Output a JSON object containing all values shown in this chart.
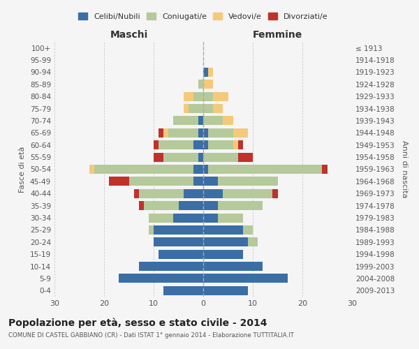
{
  "age_groups": [
    "0-4",
    "5-9",
    "10-14",
    "15-19",
    "20-24",
    "25-29",
    "30-34",
    "35-39",
    "40-44",
    "45-49",
    "50-54",
    "55-59",
    "60-64",
    "65-69",
    "70-74",
    "75-79",
    "80-84",
    "85-89",
    "90-94",
    "95-99",
    "100+"
  ],
  "birth_years": [
    "2009-2013",
    "2004-2008",
    "1999-2003",
    "1994-1998",
    "1989-1993",
    "1984-1988",
    "1979-1983",
    "1974-1978",
    "1969-1973",
    "1964-1968",
    "1959-1963",
    "1954-1958",
    "1949-1953",
    "1944-1948",
    "1939-1943",
    "1934-1938",
    "1929-1933",
    "1924-1928",
    "1919-1923",
    "1914-1918",
    "≤ 1913"
  ],
  "male": {
    "celibi": [
      8,
      17,
      13,
      9,
      10,
      10,
      6,
      5,
      4,
      2,
      2,
      1,
      2,
      1,
      1,
      0,
      0,
      0,
      0,
      0,
      0
    ],
    "coniugati": [
      0,
      0,
      0,
      0,
      0,
      1,
      5,
      7,
      9,
      13,
      20,
      7,
      7,
      6,
      5,
      3,
      2,
      1,
      0,
      0,
      0
    ],
    "vedovi": [
      0,
      0,
      0,
      0,
      0,
      0,
      0,
      0,
      0,
      0,
      1,
      0,
      0,
      1,
      0,
      1,
      2,
      0,
      0,
      0,
      0
    ],
    "divorziati": [
      0,
      0,
      0,
      0,
      0,
      0,
      0,
      1,
      1,
      4,
      0,
      2,
      1,
      1,
      0,
      0,
      0,
      0,
      0,
      0,
      0
    ]
  },
  "female": {
    "nubili": [
      9,
      17,
      12,
      8,
      9,
      8,
      3,
      3,
      4,
      3,
      1,
      0,
      1,
      1,
      0,
      0,
      0,
      0,
      1,
      0,
      0
    ],
    "coniugate": [
      0,
      0,
      0,
      0,
      2,
      2,
      5,
      9,
      10,
      12,
      23,
      7,
      5,
      5,
      4,
      2,
      2,
      0,
      0,
      0,
      0
    ],
    "vedove": [
      0,
      0,
      0,
      0,
      0,
      0,
      0,
      0,
      0,
      0,
      0,
      0,
      1,
      3,
      2,
      2,
      3,
      2,
      1,
      0,
      0
    ],
    "divorziate": [
      0,
      0,
      0,
      0,
      0,
      0,
      0,
      0,
      1,
      0,
      1,
      3,
      1,
      0,
      0,
      0,
      0,
      0,
      0,
      0,
      0
    ]
  },
  "colors": {
    "celibi": "#3a6ea5",
    "coniugati": "#b5c99a",
    "vedovi": "#f5c97a",
    "divorziati": "#c0312b"
  },
  "xlim": 30,
  "title": "Popolazione per età, sesso e stato civile - 2014",
  "subtitle": "COMUNE DI CASTEL GABBIANO (CR) - Dati ISTAT 1° gennaio 2014 - Elaborazione TUTTITALIA.IT",
  "ylabel_left": "Fasce di età",
  "ylabel_right": "Anni di nascita",
  "xlabel_left": "Maschi",
  "xlabel_right": "Femmine",
  "legend_labels": [
    "Celibi/Nubili",
    "Coniugati/e",
    "Vedovi/e",
    "Divorziati/e"
  ],
  "background_color": "#f5f5f5"
}
